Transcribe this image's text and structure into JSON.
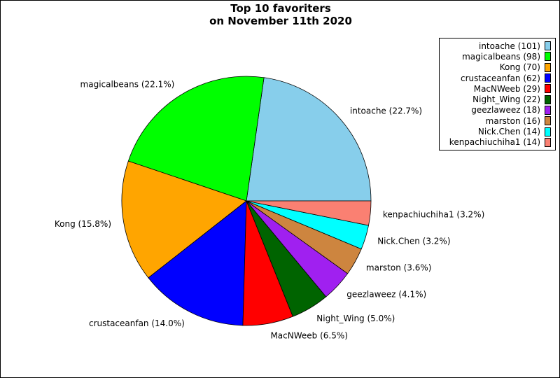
{
  "chart_data": {
    "type": "pie",
    "title": "Top 10 favoriters\non November 11th 2020",
    "title_lines": [
      "Top 10 favoriters",
      "on November 11th 2020"
    ],
    "start_angle_deg": 0,
    "direction": "counterclockwise",
    "legend_position": "top-right",
    "slices": [
      {
        "name": "intoache",
        "value": 101,
        "pct_label": "22.7%",
        "legend_label": "intoache (101)",
        "color": "#87ceeb"
      },
      {
        "name": "magicalbeans",
        "value": 98,
        "pct_label": "22.1%",
        "legend_label": "magicalbeans (98)",
        "color": "#00ff00"
      },
      {
        "name": "Kong",
        "value": 70,
        "pct_label": "15.8%",
        "legend_label": "Kong (70)",
        "color": "#ffa500"
      },
      {
        "name": "crustaceanfan",
        "value": 62,
        "pct_label": "14.0%",
        "legend_label": "crustaceanfan (62)",
        "color": "#0000ff"
      },
      {
        "name": "MacNWeeb",
        "value": 29,
        "pct_label": "6.5%",
        "legend_label": "MacNWeeb (29)",
        "color": "#ff0000"
      },
      {
        "name": "Night_Wing",
        "value": 22,
        "pct_label": "5.0%",
        "legend_label": "Night_Wing (22)",
        "color": "#006400"
      },
      {
        "name": "geezlaweez",
        "value": 18,
        "pct_label": "4.1%",
        "legend_label": "geezlaweez (18)",
        "color": "#a020f0"
      },
      {
        "name": "marston",
        "value": 16,
        "pct_label": "3.6%",
        "legend_label": "marston (16)",
        "color": "#cd853f"
      },
      {
        "name": "Nick.Chen",
        "value": 14,
        "pct_label": "3.2%",
        "legend_label": "Nick.Chen (14)",
        "color": "#00ffff"
      },
      {
        "name": "kenpachiuchiha1",
        "value": 14,
        "pct_label": "3.2%",
        "legend_label": "kenpachiuchiha1 (14)",
        "color": "#fa8072"
      }
    ]
  }
}
